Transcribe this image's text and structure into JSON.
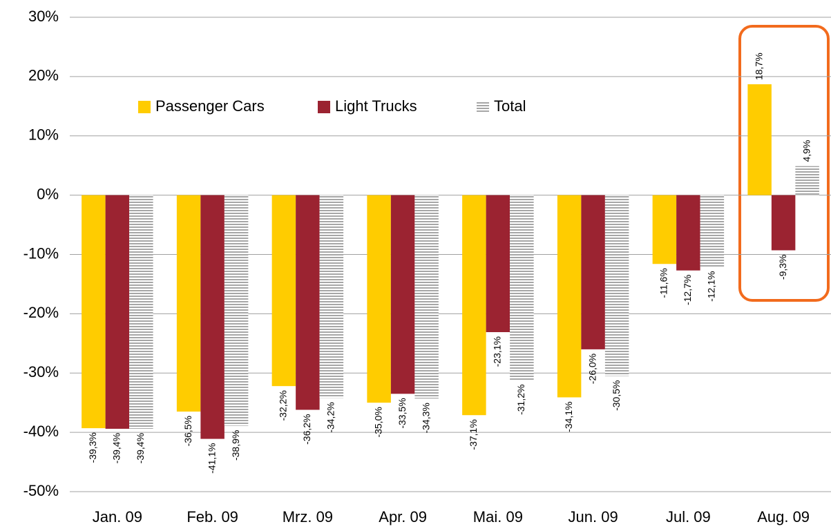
{
  "chart_data": {
    "type": "bar",
    "categories": [
      "Jan. 09",
      "Feb. 09",
      "Mrz. 09",
      "Apr. 09",
      "Mai. 09",
      "Jun. 09",
      "Jul. 09",
      "Aug. 09"
    ],
    "series": [
      {
        "name": "Passenger Cars",
        "color": "#ffcc00",
        "values": [
          -39.3,
          -36.5,
          -32.2,
          -35.0,
          -37.1,
          -34.1,
          -11.6,
          18.7
        ],
        "value_labels": [
          "-39,3%",
          "-36,5%",
          "-32,2%",
          "-35,0%",
          "-37,1%",
          "-34,1%",
          "-11,6%",
          "18,7%"
        ]
      },
      {
        "name": "Light Trucks",
        "color": "#9b2331",
        "values": [
          -39.4,
          -41.1,
          -36.2,
          -33.5,
          -23.1,
          -26.0,
          -12.7,
          -9.3
        ],
        "value_labels": [
          "-39,4%",
          "-41,1%",
          "-36,2%",
          "-33,5%",
          "-23,1%",
          "-26,0%",
          "-12,7%",
          "-9,3%"
        ]
      },
      {
        "name": "Total",
        "color": "#a6a6a6",
        "pattern": "horizontal-stripes",
        "values": [
          -39.4,
          -38.9,
          -34.2,
          -34.3,
          -31.2,
          -30.5,
          -12.1,
          4.9
        ],
        "value_labels": [
          "-39,4%",
          "-38,9%",
          "-34,2%",
          "-34,3%",
          "-31,2%",
          "-30,5%",
          "-12,1%",
          "4,9%"
        ]
      }
    ],
    "ylim": [
      -50,
      30
    ],
    "yticks": [
      {
        "value": -50,
        "label": "-50%"
      },
      {
        "value": -40,
        "label": "-40%"
      },
      {
        "value": -30,
        "label": "-30%"
      },
      {
        "value": -20,
        "label": "-20%"
      },
      {
        "value": -10,
        "label": "-10%"
      },
      {
        "value": 0,
        "label": "0%"
      },
      {
        "value": 10,
        "label": "10%"
      },
      {
        "value": 20,
        "label": "20%"
      },
      {
        "value": 30,
        "label": "30%"
      }
    ],
    "grid": true,
    "legend": "top-left"
  }
}
